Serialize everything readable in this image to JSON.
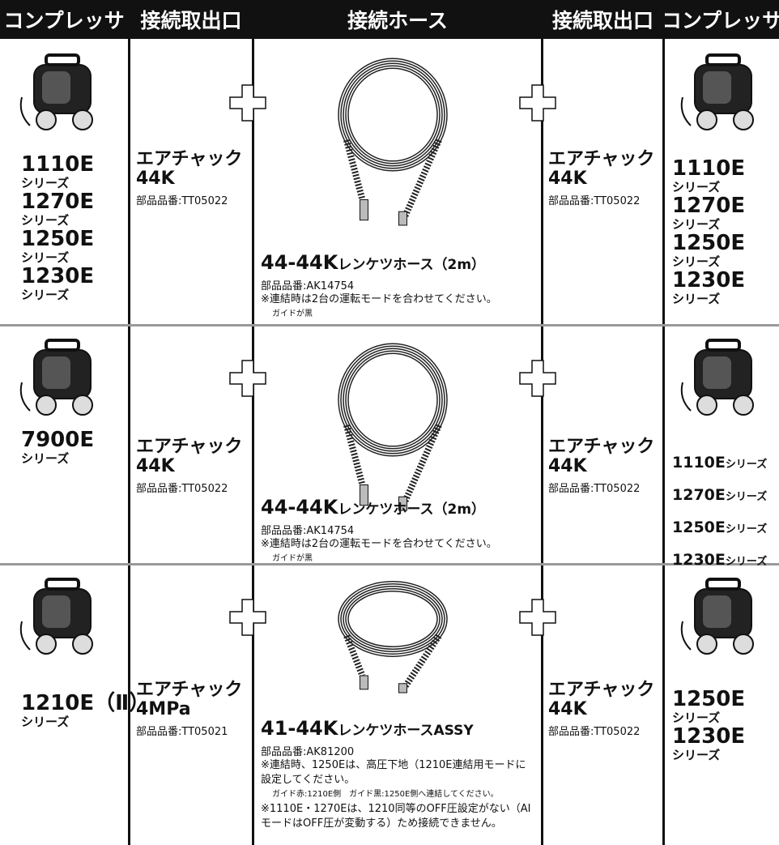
{
  "header": {
    "columns": [
      "コンプレッサ",
      "接続取出口",
      "接続ホース",
      "接続取出口",
      "コンプレッサ"
    ]
  },
  "rows": [
    {
      "left_models": [
        {
          "model": "1110E",
          "series": "シリーズ"
        },
        {
          "model": "1270E",
          "series": "シリーズ"
        },
        {
          "model": "1250E",
          "series": "シリーズ"
        },
        {
          "model": "1230E",
          "series": "シリーズ"
        }
      ],
      "left_chuck": {
        "name": "エアチャック",
        "size": "44K",
        "part": "部品品番:TT05022"
      },
      "hose": {
        "model": "44-44K",
        "name": "レンケツホース（2m）",
        "part": "部品品番:AK14754",
        "notes": [
          "※連結時は2台の運転モードを合わせてください。",
          "ガイドが黒"
        ]
      },
      "right_chuck": {
        "name": "エアチャック",
        "size": "44K",
        "part": "部品品番:TT05022"
      },
      "right_models": [
        {
          "model": "1110E",
          "series": "シリーズ"
        },
        {
          "model": "1270E",
          "series": "シリーズ"
        },
        {
          "model": "1250E",
          "series": "シリーズ"
        },
        {
          "model": "1230E",
          "series": "シリーズ"
        }
      ]
    },
    {
      "left_models": [
        {
          "model": "7900E",
          "series": "シリーズ"
        }
      ],
      "left_chuck": {
        "name": "エアチャック",
        "size": "44K",
        "part": "部品品番:TT05022"
      },
      "hose": {
        "model": "44-44K",
        "name": "レンケツホース（2m）",
        "part": "部品品番:AK14754",
        "notes": [
          "※連結時は2台の運転モードを合わせてください。",
          "ガイドが黒"
        ]
      },
      "right_chuck": {
        "name": "エアチャック",
        "size": "44K",
        "part": "部品品番:TT05022"
      },
      "right_models": [
        {
          "model": "1110E",
          "series": "シリーズ"
        },
        {
          "model": "1270E",
          "series": "シリーズ"
        },
        {
          "model": "1250E",
          "series": "シリーズ"
        },
        {
          "model": "1230E",
          "series": "シリーズ"
        }
      ]
    },
    {
      "left_models": [
        {
          "model": "1210E（Ⅱ）",
          "series": "シリーズ"
        }
      ],
      "left_chuck": {
        "name": "エアチャック",
        "size": "4MPa",
        "part": "部品品番:TT05021"
      },
      "hose": {
        "model": "41-44K",
        "name": "レンケツホースASSY",
        "part": "部品品番:AK81200",
        "notes": [
          "※連結時、1250Eは、高圧下地（1210E連結用モードに設定してください。",
          "ガイド赤:1210E側　ガイド黒:1250E側へ連結してください。",
          "※1110E・1270Eは、1210同等のOFF圧設定がない（AIモードはOFF圧が変動する）ため接続できません。"
        ]
      },
      "right_chuck": {
        "name": "エアチャック",
        "size": "44K",
        "part": "部品品番:TT05022"
      },
      "right_models": [
        {
          "model": "1250E",
          "series": "シリーズ"
        },
        {
          "model": "1230E",
          "series": "シリーズ"
        }
      ]
    }
  ]
}
